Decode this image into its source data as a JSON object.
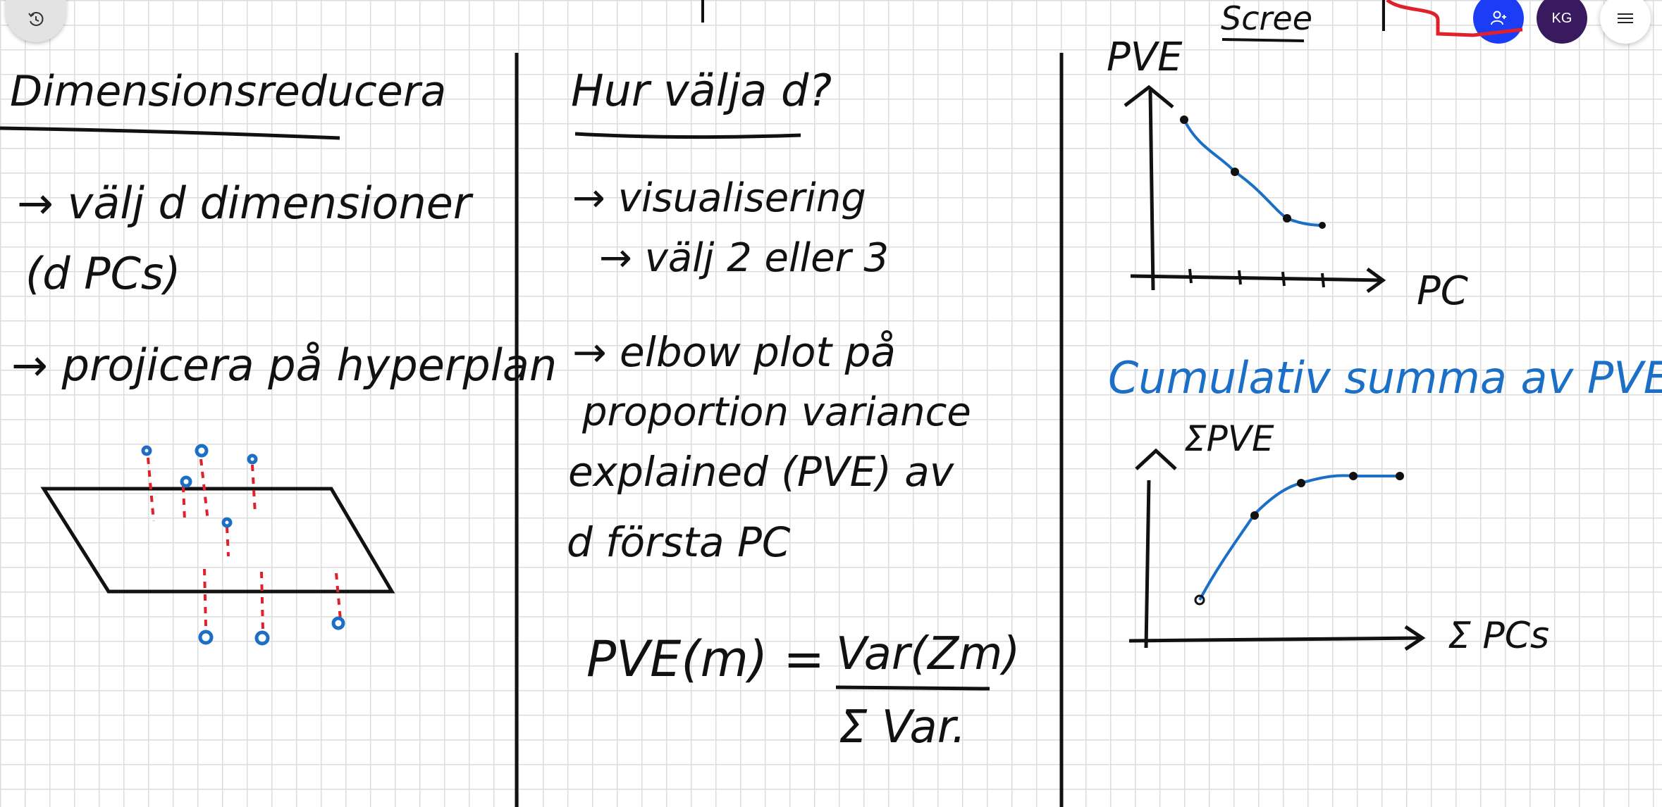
{
  "toolbar": {
    "history_icon": "history-icon",
    "invite_icon": "add-user-icon",
    "avatar_initials": "KG",
    "menu_icon": "hamburger-menu-icon",
    "accent_color": "#1a3df5",
    "avatar_color": "#3a1a5e"
  },
  "board": {
    "ink_colors": {
      "black": "#111111",
      "blue": "#1c6fc6",
      "red": "#e0202a"
    },
    "left": {
      "title": "Dimensionsreducera",
      "bullet1_line1": "→ välj d dimensioner",
      "bullet1_line2": "(d PCs)",
      "bullet2": "→ projicera på hyperplan"
    },
    "middle": {
      "title": "Hur välja d?",
      "bullet1": "→ visualisering",
      "sub_bullet1": "→ välj 2 eller 3",
      "bullet2_line1": "→ elbow plot på",
      "bullet2_line2": "proportion variance",
      "bullet2_line3": "explained (PVE) av",
      "bullet2_line4": "d första PC",
      "formula_lhs": "PVE(m) =",
      "formula_numerator": "Var(Zm)",
      "formula_denominator": "Σ Var."
    },
    "right": {
      "top_label": "Scree",
      "scree_ylabel": "PVE",
      "scree_xlabel": "PC",
      "cumulative_title": "Cumulativ summa av PVE",
      "cum_ylabel": "ΣPVE",
      "cum_xlabel": "Σ PCs"
    }
  }
}
